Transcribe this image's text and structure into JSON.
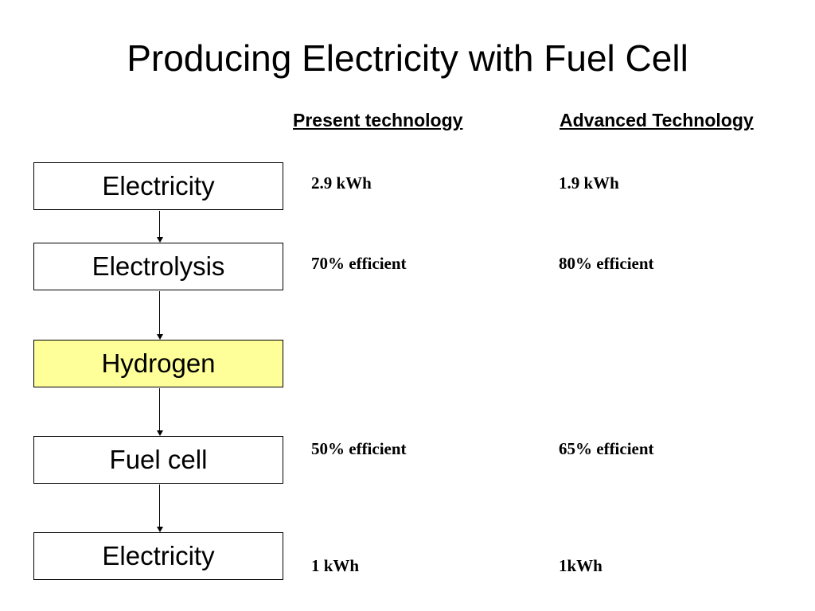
{
  "slide": {
    "title": "Producing Electricity with Fuel Cell",
    "columns": {
      "present": "Present technology",
      "advanced": "Advanced  Technology"
    },
    "steps": [
      {
        "label": "Electricity",
        "present": "2.9 kWh",
        "advanced": "1.9 kWh"
      },
      {
        "label": "Electrolysis",
        "present": "70% efficient",
        "advanced": "80% efficient"
      },
      {
        "label": "Hydrogen",
        "present": "",
        "advanced": ""
      },
      {
        "label": "Fuel cell",
        "present": "50% efficient",
        "advanced": "65% efficient"
      },
      {
        "label": "Electricity",
        "present": "1 kWh",
        "advanced": "1kWh"
      }
    ],
    "colors": {
      "highlight_box": "#ffff99",
      "border": "#000000",
      "text": "#000000"
    }
  }
}
